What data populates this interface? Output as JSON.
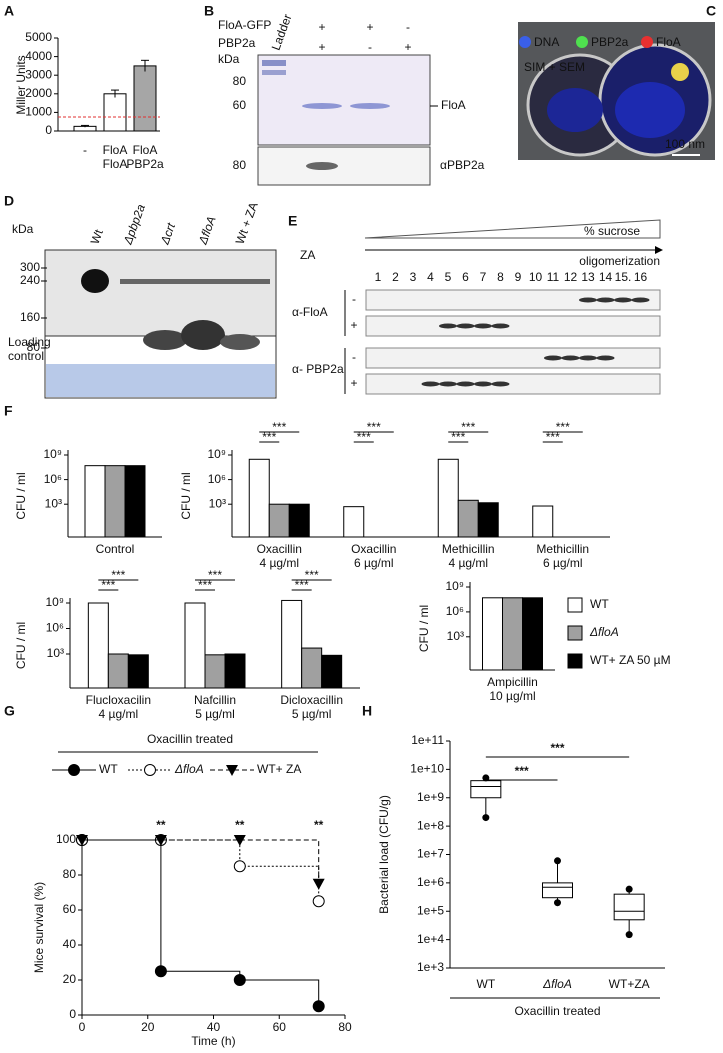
{
  "panel_labels": [
    "A",
    "B",
    "C",
    "D",
    "E",
    "F",
    "G",
    "H"
  ],
  "chart_data": [
    {
      "type": "bar",
      "ylabel": "Miller Units",
      "categories": [
        "-",
        "FloA\nFloA",
        "FloA\nPBP2a"
      ],
      "values": [
        250,
        2000,
        3500
      ],
      "errors": [
        50,
        200,
        300
      ],
      "colors": [
        "#ffffff",
        "#ffffff",
        "#a6a6a6"
      ],
      "ylim": [
        0,
        5000
      ],
      "yticks": [
        0,
        1000,
        2000,
        3000,
        4000,
        5000
      ],
      "threshold": 750,
      "threshold_color": "#e03030"
    },
    {
      "type": "bar",
      "log_y": true,
      "ylabel": "CFU / ml",
      "categories": [
        "Control",
        "Oxacillin\n4 µg/ml",
        "Oxacillin\n6 µg/ml",
        "Methicillin\n4 µg/ml",
        "Methicillin\n6 µg/ml",
        "Flucloxacilin\n4 µg/ml",
        "Nafcillin\n5 µg/ml",
        "Dicloxacillin\n5 µg/ml",
        "Ampicillin\n10 µg/ml"
      ],
      "series": [
        {
          "name": "WT",
          "color": "#ffffff",
          "values": [
            50000000.0,
            300000000.0,
            500,
            300000000.0,
            600,
            1000000000.0,
            1000000000.0,
            2000000000.0,
            50000000.0
          ]
        },
        {
          "name": "ΔfloA",
          "color": "#a0a0a0",
          "values": [
            50000000.0,
            1000,
            null,
            3000,
            null,
            1000,
            800,
            5000,
            50000000.0
          ]
        },
        {
          "name": "WT+ ZA 50 µM",
          "color": "#000000",
          "values": [
            50000000.0,
            1000,
            null,
            1500,
            null,
            800,
            1000,
            700,
            50000000.0
          ]
        }
      ],
      "significance": [
        [],
        [
          "***",
          "***"
        ],
        [
          "***",
          "***"
        ],
        [
          "***",
          "***"
        ],
        [
          "***",
          "***"
        ],
        [
          "***",
          "***"
        ],
        [
          "***",
          "***"
        ],
        [
          "***",
          "***"
        ],
        []
      ],
      "ylim": [
        0.1,
        1000000000.0
      ],
      "yticks": [
        {
          "value": 1000,
          "label": "10³"
        },
        {
          "value": 1000000,
          "label": "10⁶"
        },
        {
          "value": 1000000000,
          "label": "10⁹"
        }
      ]
    },
    {
      "type": "line",
      "title": "Oxacillin treated",
      "xlabel": "Time (h)",
      "ylabel": "Mice survival (%)",
      "xlim": [
        0,
        80
      ],
      "ylim": [
        0,
        100
      ],
      "xticks": [
        0,
        20,
        40,
        60,
        80
      ],
      "yticks": [
        0,
        20,
        40,
        60,
        80,
        100
      ],
      "series": [
        {
          "name": "WT",
          "color": "#000000",
          "marker": "circle-filled",
          "style": "solid",
          "x": [
            0,
            24,
            48,
            72
          ],
          "values": [
            100,
            25,
            20,
            5
          ]
        },
        {
          "name": "ΔfloA",
          "color": "#000000",
          "marker": "circle-open",
          "style": "dotted",
          "x": [
            0,
            24,
            48,
            72
          ],
          "values": [
            100,
            100,
            85,
            65
          ]
        },
        {
          "name": "WT+ ZA",
          "color": "#000000",
          "marker": "triangle",
          "style": "dashed",
          "x": [
            0,
            24,
            48,
            72
          ],
          "values": [
            100,
            100,
            100,
            75
          ]
        }
      ],
      "annotations": [
        {
          "x": 24,
          "text": "**"
        },
        {
          "x": 48,
          "text": "**"
        },
        {
          "x": 72,
          "text": "**"
        }
      ]
    },
    {
      "type": "box",
      "log_y": true,
      "ylabel": "Bacterial load (CFU/g)",
      "xlabel": "Oxacillin treated",
      "categories": [
        "WT",
        "ΔfloA",
        "WT+ZA"
      ],
      "boxes": [
        {
          "min": 200000000.0,
          "q1": 1000000000.0,
          "median": 2500000000.0,
          "q3": 4000000000.0,
          "max": 5000000000.0
        },
        {
          "min": 200000.0,
          "q1": 300000.0,
          "median": 700000.0,
          "q3": 1000000.0,
          "max": 6000000.0
        },
        {
          "min": 15000.0,
          "q1": 50000.0,
          "median": 100000.0,
          "q3": 400000.0,
          "max": 600000.0
        }
      ],
      "significance": [
        "***",
        "***"
      ],
      "ylim": [
        1000,
        100000000000.0
      ],
      "yticks": [
        {
          "value": 1000,
          "label": "1e+3"
        },
        {
          "value": 10000,
          "label": "1e+4"
        },
        {
          "value": 100000,
          "label": "1e+5"
        },
        {
          "value": 1000000,
          "label": "1e+6"
        },
        {
          "value": 10000000,
          "label": "1e+7"
        },
        {
          "value": 100000000,
          "label": "1e+8"
        },
        {
          "value": 1000000000,
          "label": "1e+9"
        },
        {
          "value": 10000000000,
          "label": "1e+10"
        },
        {
          "value": 100000000000,
          "label": "1e+11"
        }
      ]
    }
  ],
  "blot_b": {
    "rows": [
      {
        "label": "FloA-GFP",
        "signs": [
          "+",
          "+",
          "-"
        ]
      },
      {
        "label": "PBP2a",
        "signs": [
          "+",
          "-",
          "+"
        ]
      }
    ],
    "kda": "kDa",
    "ladder": "Ladder",
    "markers_top": [
      "80",
      "60"
    ],
    "band_label": "FloA",
    "markers_bottom": [
      "80"
    ],
    "antibody": "αPBP2a"
  },
  "image_c": {
    "legend": [
      "DNA",
      "PBP2a",
      "FloA"
    ],
    "caption": "SIM + SEM",
    "scale_bar": "100 nm"
  },
  "blot_d": {
    "kda": "kDa",
    "lanes": [
      "Wt",
      "Δpbp2a",
      "Δcrt",
      "ΔfloA",
      "Wt + ZA"
    ],
    "markers": [
      "300",
      "240",
      "160",
      "80"
    ],
    "loading": "Loading\ncontrol"
  },
  "blot_e": {
    "gradient": "% sucrose",
    "treatment": "ZA",
    "direction": "oligomerization",
    "fractions": [
      "1",
      "2",
      "3",
      "4",
      "5",
      "6",
      "7",
      "8",
      "9",
      "10",
      "11",
      "12",
      "13",
      "14",
      "15.",
      "16"
    ],
    "blots": [
      {
        "antibody": "α-FloA",
        "rows": [
          "-",
          "+"
        ]
      },
      {
        "antibody": "α- PBP2a",
        "rows": [
          "-",
          "+"
        ]
      }
    ]
  }
}
